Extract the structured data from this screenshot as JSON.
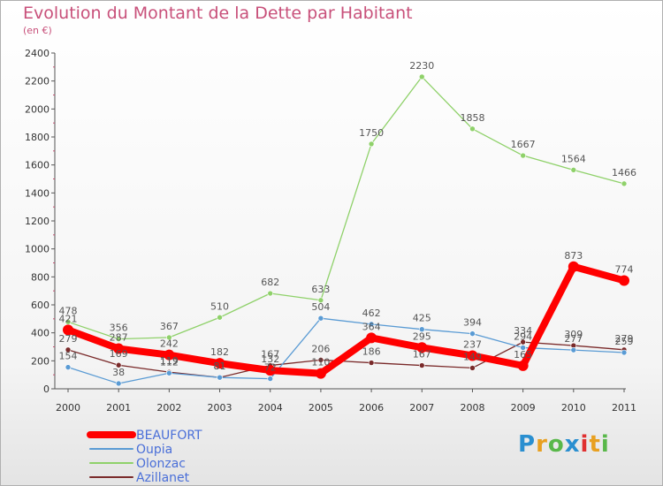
{
  "header": {
    "title": "Evolution du Montant de la Dette par Habitant",
    "subtitle": "(en €)"
  },
  "logo": {
    "text": "Proxiti"
  },
  "chart_data": {
    "type": "line",
    "title": "Evolution du Montant de la Dette par Habitant",
    "subtitle": "(en €)",
    "x": [
      "2000",
      "2001",
      "2002",
      "2003",
      "2004",
      "2005",
      "2006",
      "2007",
      "2008",
      "2009",
      "2010",
      "2011"
    ],
    "ylim": [
      0,
      2400
    ],
    "yticks": [
      0,
      200,
      400,
      600,
      800,
      1000,
      1200,
      1400,
      1600,
      1800,
      2000,
      2200,
      2400
    ],
    "grid": false,
    "legend": "bottom-left",
    "series": [
      {
        "name": "BEAUFORT",
        "color": "#ff0000",
        "values": [
          421,
          287,
          242,
          182,
          132,
          110,
          364,
          295,
          237,
          165,
          873,
          774
        ]
      },
      {
        "name": "Oupia",
        "color": "#5a9bd4",
        "values": [
          154,
          38,
          112,
          81,
          72,
          504,
          462,
          425,
          394,
          294,
          277,
          259
        ]
      },
      {
        "name": "Olonzac",
        "color": "#8fd16a",
        "values": [
          478,
          356,
          367,
          510,
          682,
          633,
          1750,
          2230,
          1858,
          1667,
          1564,
          1466
        ]
      },
      {
        "name": "Azillanet",
        "color": "#7a2a2a",
        "values": [
          279,
          169,
          119,
          81,
          167,
          206,
          186,
          167,
          149,
          334,
          309,
          279
        ]
      }
    ]
  }
}
